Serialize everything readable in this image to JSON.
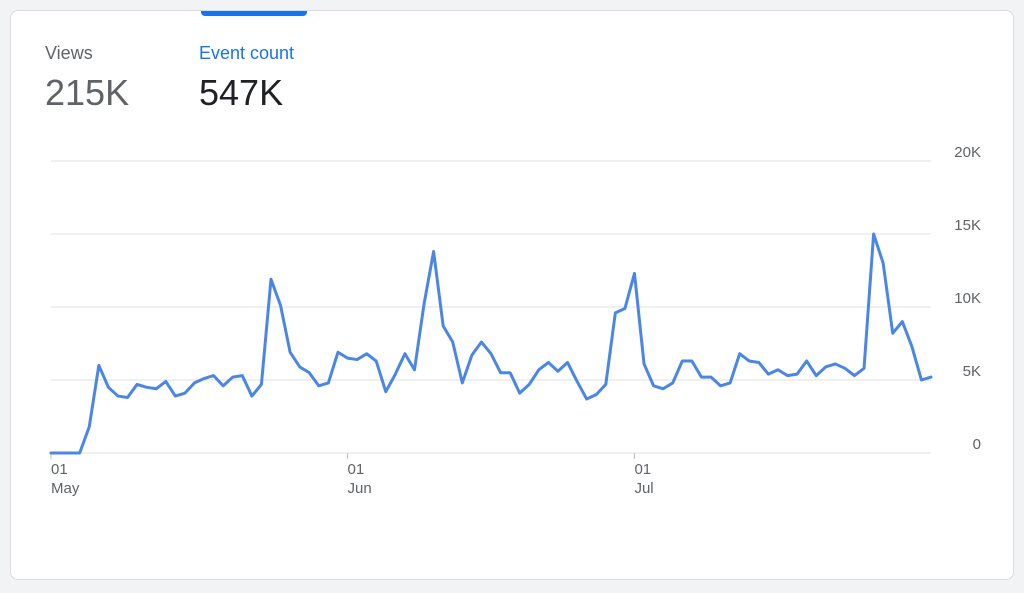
{
  "metrics": {
    "views": {
      "label": "Views",
      "value": "215K"
    },
    "event_count": {
      "label": "Event count",
      "value": "547K"
    }
  },
  "colors": {
    "accent": "#1a73e8",
    "line": "#4a86e8",
    "grid": "#e0e0e0",
    "text": "#5f6368"
  },
  "chart_data": {
    "type": "line",
    "title": "",
    "xlabel": "",
    "ylabel": "",
    "series": [
      {
        "values": [
          0,
          0,
          0,
          0,
          1800,
          6000,
          4500,
          3900,
          3800,
          4700,
          4500,
          4400,
          4900,
          3900,
          4100,
          4800,
          5100,
          5300,
          4600,
          5200,
          5300,
          3900,
          4700,
          11900,
          10100,
          6900,
          5900,
          5500,
          4600,
          4800,
          6900,
          6500,
          6400,
          6800,
          6300,
          4200,
          5400,
          6800,
          5700,
          10200,
          13800,
          8700,
          7600,
          4800,
          6700,
          7600,
          6800,
          5500,
          5500,
          4100,
          4700,
          5700,
          6200,
          5600,
          6200,
          4900,
          3700,
          4000,
          4700,
          9600,
          9900,
          12300,
          6100,
          4600,
          4400,
          4800,
          6300,
          6300,
          5200,
          5200,
          4600,
          4800,
          6800,
          6300,
          6200,
          5400,
          5700,
          5300,
          5400,
          6300,
          5300,
          5900,
          6100,
          5800,
          5300,
          5800,
          15000,
          13000,
          8200,
          9000,
          7300,
          5000,
          5200
        ]
      }
    ],
    "x_axis": {
      "start_date": "May 1",
      "ticks": [
        {
          "day": "01",
          "month": "May"
        },
        {
          "day": "01",
          "month": "Jun"
        },
        {
          "day": "01",
          "month": "Jul"
        }
      ]
    },
    "y_ticks": [
      "0",
      "5K",
      "10K",
      "15K",
      "20K"
    ],
    "ylim": [
      0,
      20000
    ],
    "grid": true,
    "y_axis_position": "right"
  }
}
